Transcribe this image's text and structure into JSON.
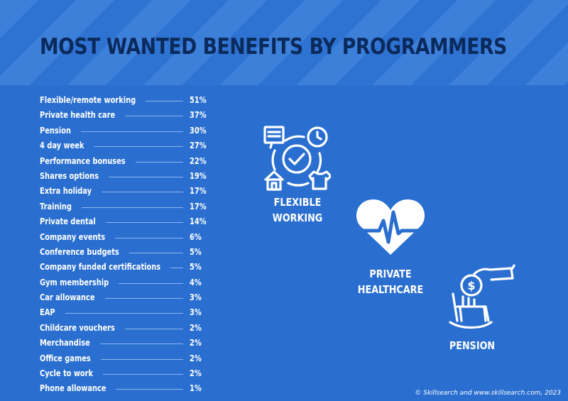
{
  "title": "MOST WANTED BENEFITS BY PROGRAMMERS",
  "chart_data": {
    "type": "table",
    "title": "MOST WANTED BENEFITS BY PROGRAMMERS",
    "rows": [
      {
        "label": "Flexible/remote working",
        "display": "51%",
        "value": 51
      },
      {
        "label": "Private health care",
        "display": "37%",
        "value": 37
      },
      {
        "label": "Pension",
        "display": "30%",
        "value": 30
      },
      {
        "label": "4 day week",
        "display": "27%",
        "value": 27
      },
      {
        "label": "Performance bonuses",
        "display": "22%",
        "value": 22
      },
      {
        "label": "Shares options",
        "display": "19%",
        "value": 19
      },
      {
        "label": "Extra holiday",
        "display": "17%",
        "value": 17
      },
      {
        "label": "Training",
        "display": "17%",
        "value": 17
      },
      {
        "label": "Private dental",
        "display": "14%",
        "value": 14
      },
      {
        "label": "Company events",
        "display": "6%",
        "value": 6
      },
      {
        "label": "Conference budgets",
        "display": "5%",
        "value": 5
      },
      {
        "label": "Company funded certifications",
        "display": "5%",
        "value": 5
      },
      {
        "label": "Gym membership",
        "display": "4%",
        "value": 4
      },
      {
        "label": "Car allowance",
        "display": "3%",
        "value": 3
      },
      {
        "label": "EAP",
        "display": "3%",
        "value": 3
      },
      {
        "label": "Childcare vouchers",
        "display": "2%",
        "value": 2
      },
      {
        "label": "Merchandise",
        "display": "2%",
        "value": 2
      },
      {
        "label": "Office games",
        "display": "2%",
        "value": 2
      },
      {
        "label": "Cycle to work",
        "display": "2%",
        "value": 2
      },
      {
        "label": "Phone allowance",
        "display": "1%",
        "value": 1
      }
    ]
  },
  "highlights": [
    {
      "icon": "flexible-working-icon",
      "line1": "FLEXIBLE",
      "line2": "WORKING"
    },
    {
      "icon": "heart-pulse-icon",
      "line1": "PRIVATE",
      "line2": "HEALTHCARE"
    },
    {
      "icon": "rocking-chair-coin-icon",
      "line1": "PENSION",
      "line2": ""
    }
  ],
  "footer": "© Skillsearch and www.skillsearch.com, 2023",
  "colors": {
    "background": "#2a6fd0",
    "title": "#0b2a5c",
    "text": "#ffffff",
    "stripe_light": "#3d80da",
    "stripe_dark": "#2f73d2"
  }
}
